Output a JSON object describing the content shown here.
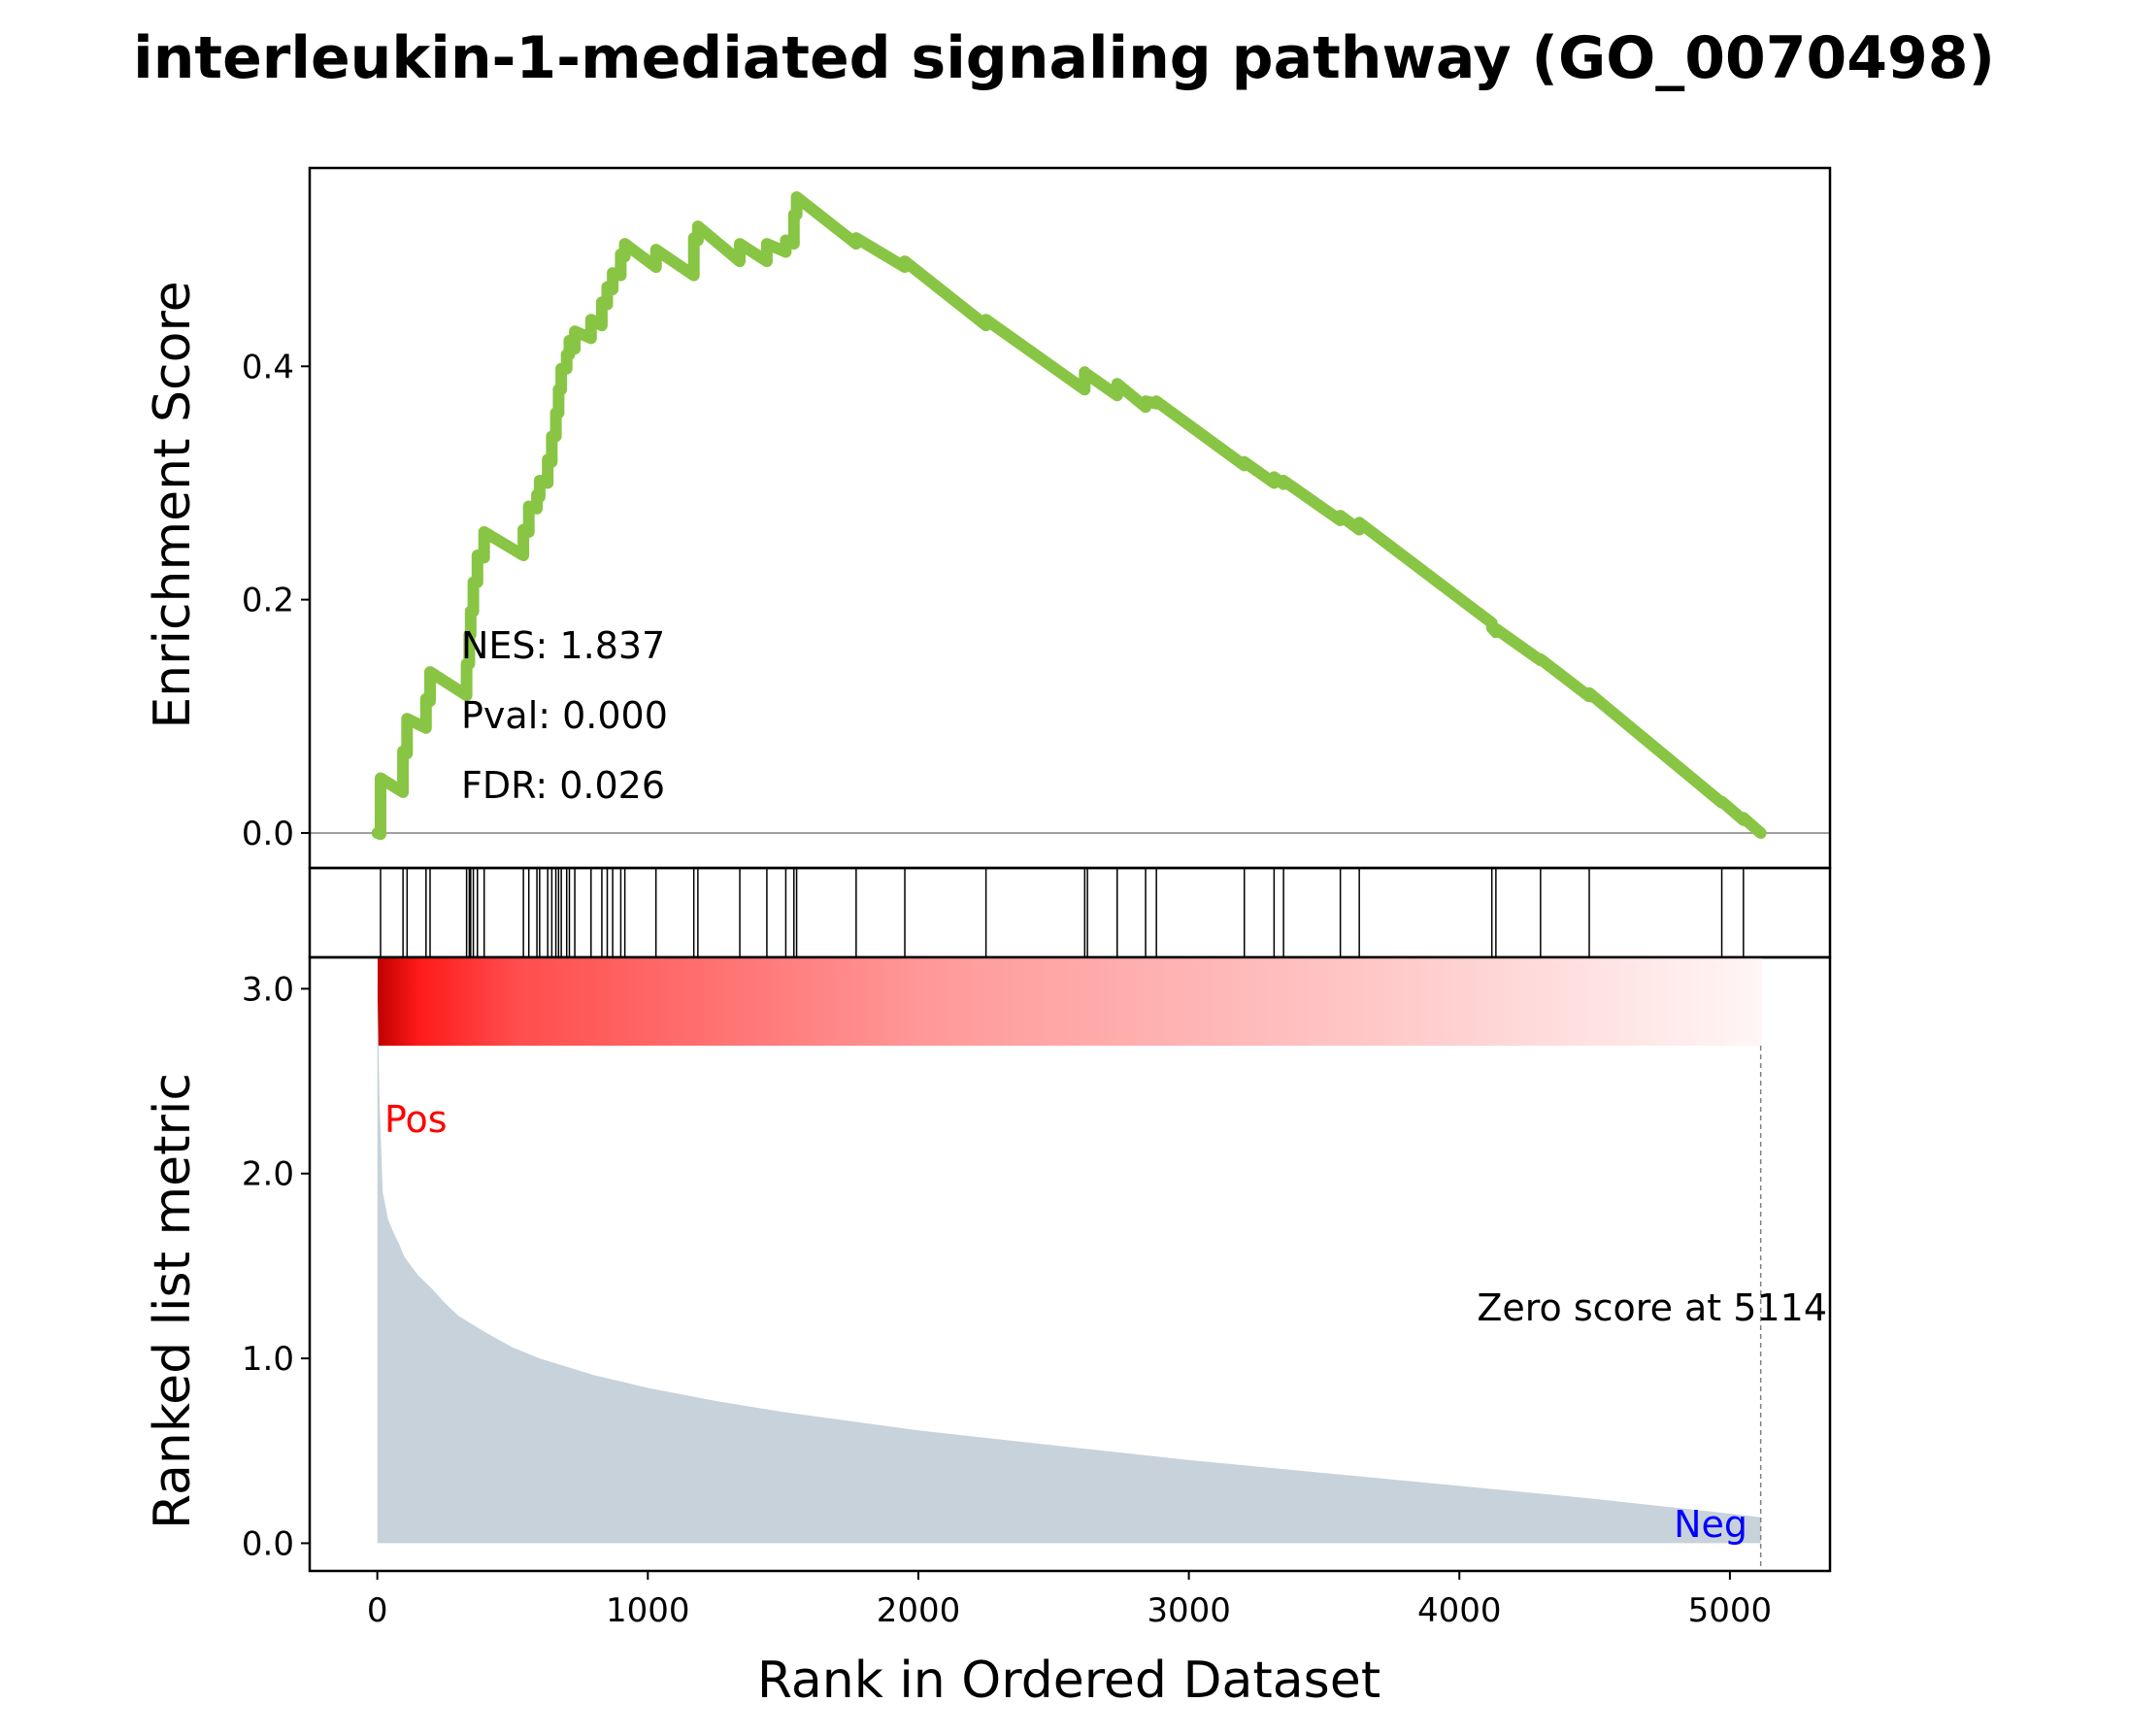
{
  "chart_data": {
    "type": "line",
    "title": "interleukin-1-mediated signaling pathway (GO_0070498)",
    "xlabel": "Rank in Ordered Dataset",
    "xlim": [
      -250,
      5370
    ],
    "x_ticks": [
      0,
      1000,
      2000,
      3000,
      4000,
      5000
    ],
    "x_tick_labels": [
      "0",
      "1000",
      "2000",
      "3000",
      "4000",
      "5000"
    ],
    "enrichment_panel": {
      "ylabel": "Enrichment Score",
      "ylim": [
        -0.03,
        0.57
      ],
      "y_ticks": [
        0.0,
        0.2,
        0.4
      ],
      "y_tick_labels": [
        "0.0",
        "0.2",
        "0.4"
      ],
      "line_color": "#88c544",
      "stats": {
        "nes": "NES: 1.837",
        "pval": "Pval: 0.000",
        "fdr": "FDR: 0.026"
      },
      "hits": [
        12,
        95,
        110,
        180,
        195,
        330,
        340,
        345,
        355,
        370,
        395,
        540,
        560,
        590,
        600,
        630,
        645,
        660,
        670,
        680,
        700,
        710,
        730,
        790,
        830,
        850,
        870,
        900,
        915,
        1030,
        1170,
        1185,
        1340,
        1440,
        1510,
        1540,
        1550,
        1770,
        1950,
        2250,
        2615,
        2625,
        2735,
        2840,
        2880,
        3205,
        3315,
        3350,
        3560,
        3630,
        4120,
        4135,
        4300,
        4480,
        4970,
        5050
      ],
      "curve": {
        "x": [
          0,
          12,
          12,
          95,
          95,
          110,
          110,
          180,
          180,
          195,
          195,
          330,
          330,
          340,
          340,
          345,
          345,
          355,
          355,
          370,
          370,
          395,
          395,
          540,
          540,
          560,
          560,
          590,
          590,
          600,
          600,
          630,
          630,
          645,
          645,
          660,
          660,
          670,
          670,
          680,
          680,
          700,
          700,
          710,
          710,
          730,
          730,
          790,
          790,
          830,
          830,
          850,
          850,
          870,
          870,
          900,
          900,
          915,
          915,
          1030,
          1030,
          1170,
          1170,
          1185,
          1185,
          1340,
          1340,
          1440,
          1440,
          1510,
          1510,
          1540,
          1540,
          1550,
          1550,
          1770,
          1770,
          1950,
          1950,
          2250,
          2250,
          2615,
          2615,
          2625,
          2625,
          2735,
          2735,
          2840,
          2840,
          2880,
          2880,
          3205,
          3205,
          3315,
          3315,
          3350,
          3350,
          3560,
          3560,
          3630,
          3630,
          4120,
          4120,
          4135,
          4135,
          4300,
          4300,
          4480,
          4480,
          4970,
          4970,
          5050,
          5050,
          5114
        ],
        "y": [
          0.0,
          -0.001,
          0.047,
          0.035,
          0.07,
          0.068,
          0.098,
          0.09,
          0.115,
          0.113,
          0.138,
          0.118,
          0.145,
          0.145,
          0.17,
          0.17,
          0.19,
          0.19,
          0.215,
          0.215,
          0.238,
          0.236,
          0.258,
          0.238,
          0.26,
          0.258,
          0.28,
          0.278,
          0.29,
          0.288,
          0.302,
          0.3,
          0.32,
          0.318,
          0.34,
          0.34,
          0.36,
          0.36,
          0.38,
          0.38,
          0.398,
          0.398,
          0.41,
          0.41,
          0.422,
          0.415,
          0.43,
          0.424,
          0.44,
          0.435,
          0.455,
          0.453,
          0.468,
          0.466,
          0.48,
          0.478,
          0.496,
          0.494,
          0.505,
          0.485,
          0.5,
          0.478,
          0.51,
          0.508,
          0.52,
          0.49,
          0.505,
          0.49,
          0.505,
          0.498,
          0.508,
          0.505,
          0.53,
          0.53,
          0.545,
          0.505,
          0.51,
          0.485,
          0.49,
          0.435,
          0.44,
          0.38,
          0.395,
          0.392,
          0.393,
          0.375,
          0.385,
          0.365,
          0.37,
          0.368,
          0.37,
          0.315,
          0.318,
          0.3,
          0.305,
          0.299,
          0.302,
          0.268,
          0.272,
          0.26,
          0.266,
          0.18,
          0.176,
          0.172,
          0.175,
          0.148,
          0.149,
          0.117,
          0.12,
          0.026,
          0.027,
          0.011,
          0.013,
          0.0
        ]
      }
    },
    "ranked_panel": {
      "ylabel": "Ranked list metric",
      "ylim": [
        -0.15,
        3.17
      ],
      "y_ticks": [
        0.0,
        1.0,
        2.0,
        3.0
      ],
      "y_tick_labels": [
        "0.0",
        "1.0",
        "2.0",
        "3.0"
      ],
      "fill_color": "#c8d2db",
      "pos_label": "Pos",
      "neg_label": "Neg",
      "pos_color": "#ff0000",
      "neg_color": "#0000ff",
      "zero_score_text": "Zero score at 5114",
      "zero_score_x": 5114,
      "metric": {
        "x": [
          0,
          8,
          20,
          40,
          60,
          80,
          100,
          150,
          200,
          250,
          300,
          400,
          500,
          600,
          800,
          1000,
          1250,
          1500,
          1750,
          2000,
          2500,
          3000,
          3500,
          4000,
          4500,
          5000,
          5114
        ],
        "y": [
          3.05,
          2.4,
          1.9,
          1.75,
          1.68,
          1.62,
          1.55,
          1.45,
          1.38,
          1.3,
          1.23,
          1.14,
          1.06,
          1.0,
          0.91,
          0.84,
          0.77,
          0.71,
          0.66,
          0.61,
          0.53,
          0.45,
          0.38,
          0.31,
          0.24,
          0.16,
          0.14
        ]
      }
    },
    "gradient_colors": [
      "#ff0000",
      "#ffffff"
    ]
  }
}
